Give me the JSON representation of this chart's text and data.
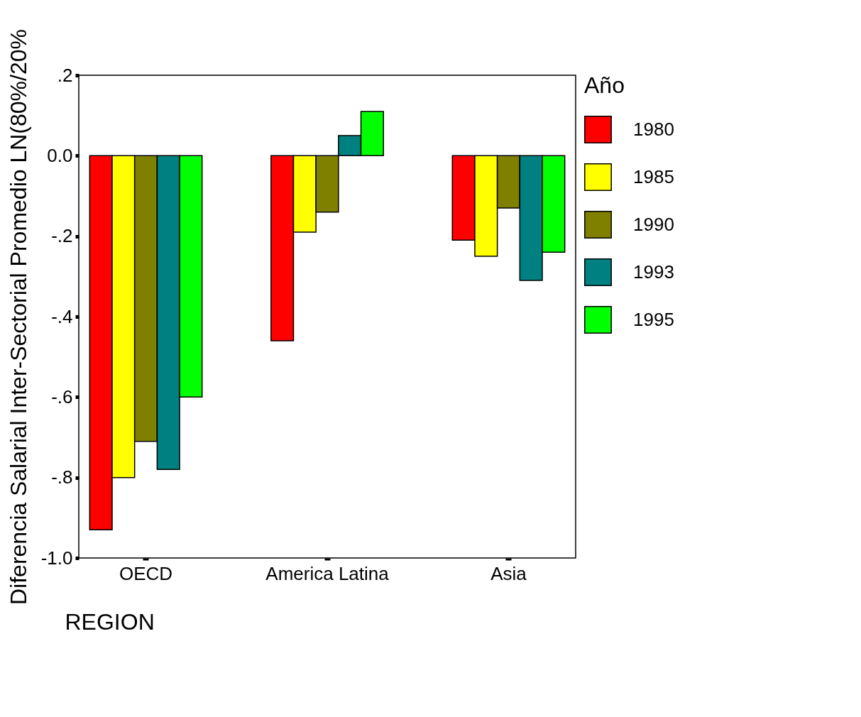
{
  "chart_data": {
    "type": "bar",
    "xlabel": "REGION",
    "ylabel": "Diferencia Salarial Inter-Sectorial Promedio LN(80%/20%",
    "legend_title": "Año",
    "categories": [
      "OECD",
      "America Latina",
      "Asia"
    ],
    "series": [
      {
        "name": "1980",
        "color": "#ff0000",
        "values": [
          -0.93,
          -0.46,
          -0.21
        ]
      },
      {
        "name": "1985",
        "color": "#ffff00",
        "values": [
          -0.8,
          -0.19,
          -0.25
        ]
      },
      {
        "name": "1990",
        "color": "#808000",
        "values": [
          -0.71,
          -0.14,
          -0.13
        ]
      },
      {
        "name": "1993",
        "color": "#008080",
        "values": [
          -0.78,
          0.05,
          -0.31
        ]
      },
      {
        "name": "1995",
        "color": "#00ff00",
        "values": [
          -0.6,
          0.11,
          -0.24
        ]
      }
    ],
    "ylim": [
      -1.0,
      0.2
    ],
    "yticks": [
      {
        "value": 0.2,
        "label": ".2"
      },
      {
        "value": 0.0,
        "label": "0.0"
      },
      {
        "value": -0.2,
        "label": "-.2"
      },
      {
        "value": -0.4,
        "label": "-.4"
      },
      {
        "value": -0.6,
        "label": "-.6"
      },
      {
        "value": -0.8,
        "label": "-.8"
      },
      {
        "value": -1.0,
        "label": "-1.0"
      }
    ],
    "grid": false,
    "legend": "right"
  }
}
